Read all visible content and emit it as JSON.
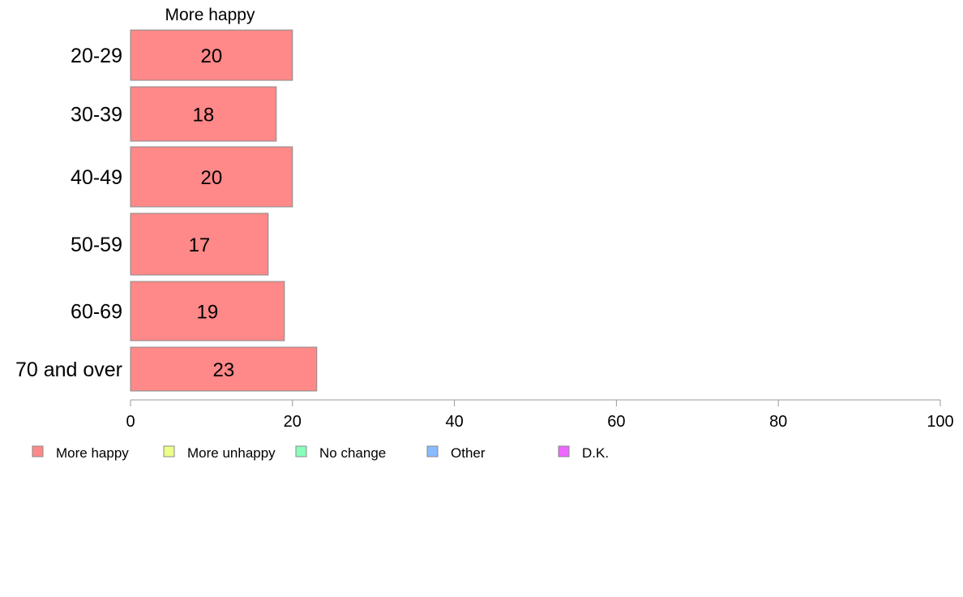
{
  "chart_data": {
    "type": "bar",
    "orientation": "horizontal",
    "stacked": true,
    "title": "",
    "column_header": "More happy",
    "categories": [
      "20-29",
      "30-39",
      "40-49",
      "50-59",
      "60-69",
      "70 and over"
    ],
    "series": [
      {
        "name": "More happy",
        "values": [
          20,
          18,
          20,
          17,
          19,
          23
        ],
        "color": "#ff8888"
      }
    ],
    "legend": [
      {
        "label": "More happy",
        "color": "#ff8888"
      },
      {
        "label": "More unhappy",
        "color": "#eeff88"
      },
      {
        "label": "No change",
        "color": "#88ffbb"
      },
      {
        "label": "Other",
        "color": "#88bbff"
      },
      {
        "label": "D.K.",
        "color": "#ee66ff"
      }
    ],
    "xlim": [
      0,
      100
    ],
    "xticks": [
      0,
      20,
      40,
      60,
      80,
      100
    ],
    "grid": false,
    "legend_position": "bottom"
  }
}
